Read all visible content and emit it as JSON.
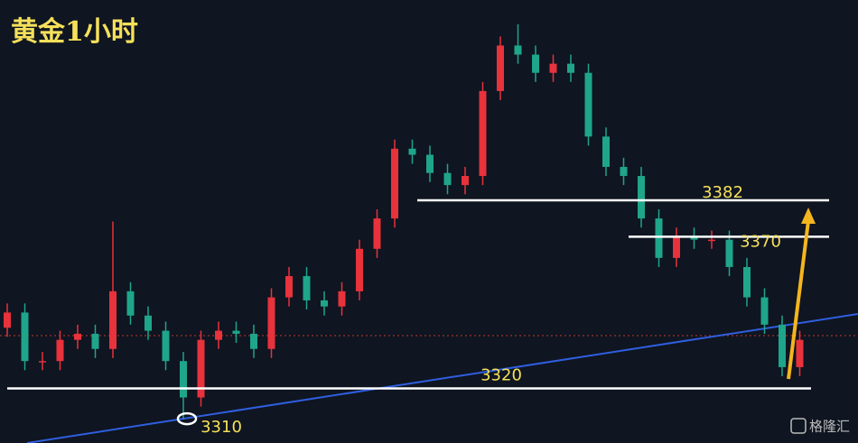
{
  "chart_data": {
    "type": "candlestick",
    "title": "黄金1小时",
    "open": [
      3340,
      3345,
      3329,
      3329,
      3336,
      3338,
      3333,
      3352,
      3344,
      3339,
      3329,
      3317,
      3336,
      3339,
      3338,
      3333,
      3350,
      3357,
      3349,
      3347,
      3352,
      3366,
      3376,
      3399,
      3397,
      3391,
      3387,
      3390,
      3418,
      3433,
      3430,
      3424,
      3427,
      3424,
      3403,
      3393,
      3390,
      3376,
      3363,
      3370,
      3369,
      3369,
      3360,
      3350,
      3341,
      3327
    ],
    "high": [
      3348,
      3348,
      3332,
      3339,
      3341,
      3341,
      3375,
      3355,
      3347,
      3342,
      3332,
      3339,
      3342,
      3342,
      3341,
      3353,
      3360,
      3360,
      3352,
      3355,
      3369,
      3379,
      3402,
      3402,
      3400,
      3394,
      3393,
      3421,
      3436,
      3440,
      3433,
      3430,
      3430,
      3427,
      3406,
      3396,
      3393,
      3379,
      3373,
      3373,
      3372,
      3372,
      3363,
      3353,
      3344,
      3339
    ],
    "low": [
      3337,
      3326,
      3326,
      3326,
      3333,
      3330,
      3330,
      3341,
      3336,
      3326,
      3310,
      3314,
      3333,
      3335,
      3330,
      3330,
      3347,
      3346,
      3344,
      3344,
      3349,
      3363,
      3373,
      3394,
      3388,
      3384,
      3384,
      3387,
      3415,
      3427,
      3421,
      3421,
      3421,
      3400,
      3390,
      3387,
      3373,
      3360,
      3360,
      3366,
      3366,
      3357,
      3347,
      3338,
      3324,
      3324
    ],
    "close": [
      3345,
      3329,
      3329,
      3336,
      3338,
      3333,
      3352,
      3344,
      3339,
      3329,
      3317,
      3336,
      3339,
      3338,
      3333,
      3350,
      3357,
      3349,
      3347,
      3352,
      3366,
      3376,
      3399,
      3397,
      3391,
      3387,
      3390,
      3418,
      3433,
      3430,
      3424,
      3427,
      3424,
      3403,
      3393,
      3390,
      3376,
      3363,
      3370,
      3369,
      3369,
      3360,
      3350,
      3341,
      3327,
      3336
    ],
    "up_color": "#e8323c",
    "down_color": "#1fa58a",
    "ylim": [
      3302,
      3448
    ],
    "levels": [
      3382,
      3370,
      3320,
      3310
    ],
    "watermark": "格隆汇"
  }
}
